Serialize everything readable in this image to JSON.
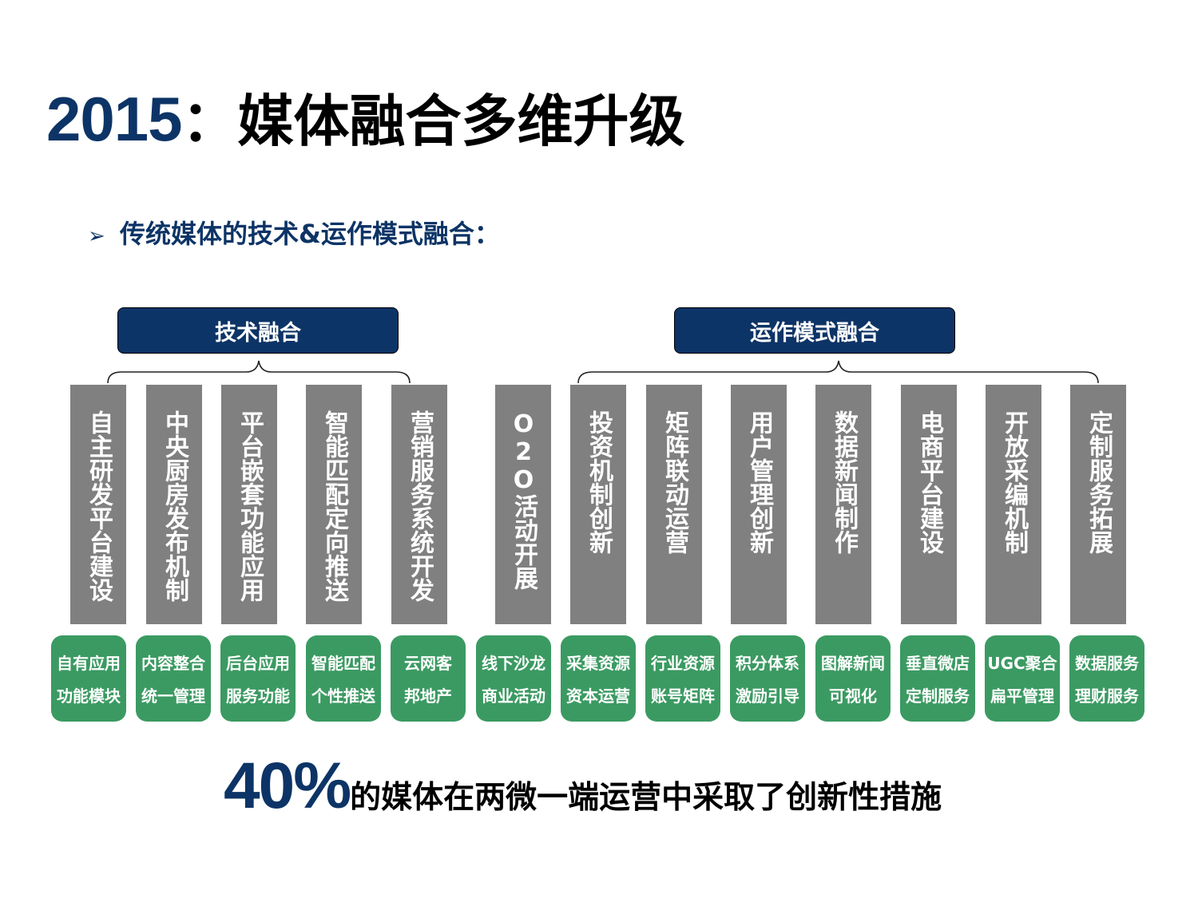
{
  "title": {
    "year": "2015",
    "rest": "：媒体融合多维升级"
  },
  "subtitle": {
    "arrow": "➢",
    "text": "传统媒体的技术&运作模式融合："
  },
  "categories": [
    {
      "label": "技术融合"
    },
    {
      "label": "运作模式融合"
    }
  ],
  "columns": [
    {
      "bar": "自主研发平台建设",
      "pill": [
        "自有应用",
        "功能模块"
      ]
    },
    {
      "bar": "中央厨房发布机制",
      "pill": [
        "内容整合",
        "统一管理"
      ]
    },
    {
      "bar": "平台嵌套功能应用",
      "pill": [
        "后台应用",
        "服务功能"
      ]
    },
    {
      "bar": "智能匹配定向推送",
      "pill": [
        "智能匹配",
        "个性推送"
      ]
    },
    {
      "bar": "营销服务系统开发",
      "pill": [
        "云网客",
        "邦地产"
      ]
    },
    {
      "bar": "O2O活动开展",
      "pill": [
        "线下沙龙",
        "商业活动"
      ]
    },
    {
      "bar": "投资机制创新",
      "pill": [
        "采集资源",
        "资本运营"
      ]
    },
    {
      "bar": "矩阵联动运营",
      "pill": [
        "行业资源",
        "账号矩阵"
      ]
    },
    {
      "bar": "用户管理创新",
      "pill": [
        "积分体系",
        "激励引导"
      ]
    },
    {
      "bar": "数据新闻制作",
      "pill": [
        "图解新闻",
        "可视化"
      ]
    },
    {
      "bar": "电商平台建设",
      "pill": [
        "垂直微店",
        "定制服务"
      ]
    },
    {
      "bar": "开放采编机制",
      "pill": [
        "UGC聚合",
        "扁平管理"
      ]
    },
    {
      "bar": "定制服务拓展",
      "pill": [
        "数据服务",
        "理财服务"
      ]
    }
  ],
  "conclusion": {
    "percent": "40%",
    "text": "的媒体在两微一端运营中采取了创新性措施"
  },
  "colors": {
    "navy": "#0d3466",
    "bar_gray": "#808080",
    "pill_green": "#3b9a62"
  }
}
